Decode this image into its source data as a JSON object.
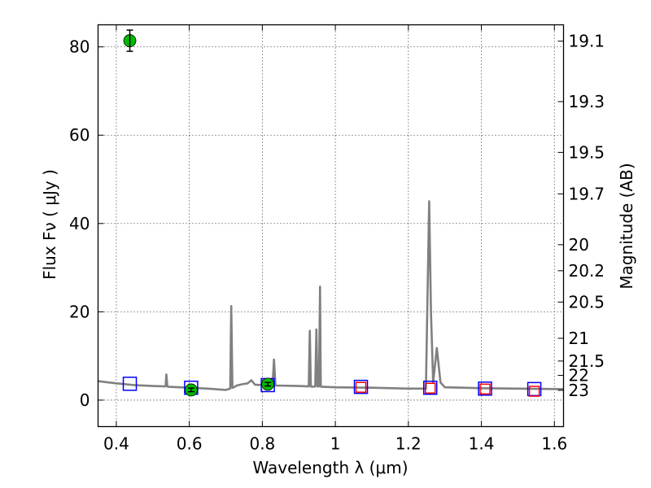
{
  "chart_data": {
    "type": "line",
    "xlabel": "Wavelength  λ (μm)",
    "ylabel": "Flux  Fν  ( μJy )",
    "ylabel_right": "Magnitude (AB)",
    "xlim": [
      0.35,
      1.625
    ],
    "ylim": [
      -6,
      85
    ],
    "grid": true,
    "x_ticks": [
      0.4,
      0.6,
      0.8,
      1.0,
      1.2,
      1.4,
      1.6
    ],
    "x_tick_labels": [
      "0.4",
      "0.6",
      "0.8",
      "1",
      "1.2",
      "1.4",
      "1.6"
    ],
    "y_ticks": [
      0,
      20,
      40,
      60,
      80
    ],
    "y_tick_labels": [
      "0",
      "20",
      "40",
      "60",
      "80"
    ],
    "right_axis": {
      "labels": [
        "19.1",
        "19.3",
        "19.5",
        "19.7",
        "20",
        "20.2",
        "20.5",
        "21",
        "21.5",
        "22",
        "23"
      ],
      "flux_positions": [
        81.3,
        67.6,
        56.1,
        46.7,
        35.2,
        29.3,
        22.2,
        14.0,
        8.85,
        5.6,
        2.22
      ]
    },
    "series": [
      {
        "role": "model-spectrum",
        "color": "#808080",
        "x": [
          0.35,
          0.4,
          0.45,
          0.5,
          0.535,
          0.537,
          0.54,
          0.543,
          0.6,
          0.65,
          0.7,
          0.712,
          0.715,
          0.718,
          0.722,
          0.73,
          0.745,
          0.76,
          0.77,
          0.78,
          0.8,
          0.828,
          0.832,
          0.836,
          0.9,
          0.927,
          0.93,
          0.933,
          0.936,
          0.945,
          0.948,
          0.951,
          0.955,
          0.958,
          0.96,
          0.962,
          0.967,
          1.0,
          1.1,
          1.2,
          1.248,
          1.257,
          1.262,
          1.268,
          1.278,
          1.288,
          1.3,
          1.35,
          1.4,
          1.5,
          1.625
        ],
        "y": [
          4.3,
          3.8,
          3.4,
          3.2,
          3.1,
          5.8,
          3.1,
          3.0,
          2.8,
          2.6,
          2.3,
          2.6,
          21.3,
          2.8,
          2.9,
          3.3,
          3.6,
          3.8,
          4.5,
          3.5,
          3.4,
          3.3,
          9.2,
          3.3,
          3.2,
          3.1,
          15.7,
          3.1,
          3.0,
          3.1,
          16.0,
          3.1,
          3.1,
          25.7,
          3.1,
          3.0,
          3.0,
          2.9,
          2.8,
          2.6,
          2.6,
          45.0,
          20.0,
          4.0,
          11.8,
          4.0,
          2.9,
          2.8,
          2.7,
          2.6,
          2.5
        ]
      },
      {
        "role": "model-photometry",
        "color": "#0000ff",
        "marker": "square",
        "x": [
          0.437,
          0.605,
          0.815,
          1.07,
          1.26,
          1.41,
          1.545
        ],
        "y": [
          3.7,
          2.8,
          3.4,
          3.0,
          2.8,
          2.6,
          2.5
        ]
      },
      {
        "role": "observed-flux-upper-limit",
        "color": "#ff0000",
        "marker": "square",
        "x": [
          1.07,
          1.26,
          1.41,
          1.545
        ],
        "y": [
          2.9,
          2.7,
          2.5,
          2.0
        ]
      },
      {
        "role": "observed-photometry",
        "color": "#00bb00",
        "marker": "circle",
        "x": [
          0.437,
          0.605,
          0.815
        ],
        "y": [
          81.4,
          2.3,
          3.6
        ],
        "yerr": [
          2.4,
          0.4,
          0.4
        ]
      }
    ]
  }
}
